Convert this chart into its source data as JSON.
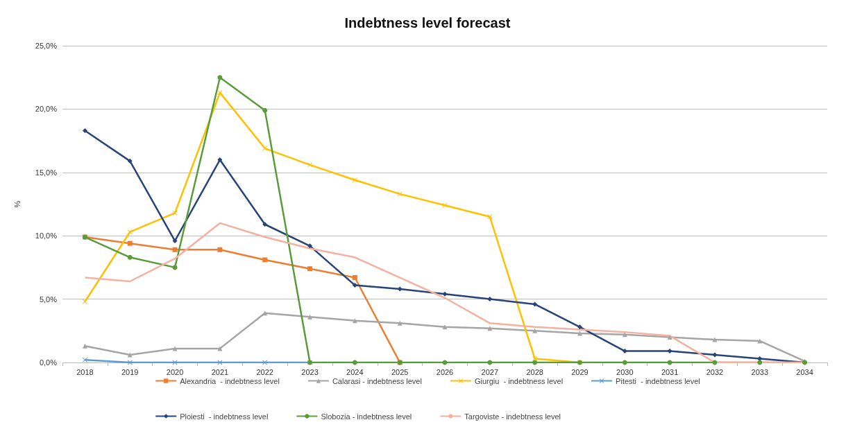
{
  "chart_data": {
    "type": "line",
    "title": "Indebtness level forecast",
    "ylabel": "%",
    "categories": [
      "2018",
      "2019",
      "2020",
      "2021",
      "2022",
      "2023",
      "2024",
      "2025",
      "2026",
      "2027",
      "2028",
      "2029",
      "2030",
      "2031",
      "2032",
      "2033",
      "2034"
    ],
    "ylim": [
      0,
      25
    ],
    "yticks": [
      {
        "value": 0,
        "label": "0,0%"
      },
      {
        "value": 5,
        "label": "5,0%"
      },
      {
        "value": 10,
        "label": "10,0%"
      },
      {
        "value": 15,
        "label": "15,0%"
      },
      {
        "value": 20,
        "label": "20,0%"
      },
      {
        "value": 25,
        "label": "25,0%"
      }
    ],
    "grid": "y",
    "legend": "bottom",
    "series": [
      {
        "name": "Alexandria  - indebtness level",
        "color": "#ed7d31",
        "marker": "square",
        "values": [
          9.9,
          9.4,
          8.9,
          8.9,
          8.1,
          7.4,
          6.7,
          0,
          null,
          null,
          null,
          null,
          null,
          null,
          null,
          null,
          null
        ]
      },
      {
        "name": "Calarasi - indebtness level",
        "color": "#a5a5a5",
        "marker": "triangle",
        "values": [
          1.3,
          0.6,
          1.1,
          1.1,
          3.9,
          3.6,
          3.3,
          3.1,
          2.8,
          2.7,
          2.5,
          2.3,
          2.2,
          2.0,
          1.8,
          1.7,
          0.1
        ]
      },
      {
        "name": "Giurgiu  - indebtness level",
        "color": "#ffc000",
        "marker": "cross",
        "values": [
          4.8,
          10.3,
          11.8,
          21.3,
          16.9,
          15.6,
          14.4,
          13.3,
          12.4,
          11.5,
          0.3,
          0,
          null,
          null,
          null,
          null,
          null
        ]
      },
      {
        "name": "Pitesti  - indebtness level",
        "color": "#5b9bd5",
        "marker": "cross",
        "values": [
          0.2,
          0,
          0,
          0,
          0,
          0,
          null,
          null,
          null,
          null,
          null,
          null,
          null,
          null,
          null,
          null,
          null
        ]
      },
      {
        "name": "Ploiesti  - indebtness level",
        "color": "#264478",
        "marker": "diamond",
        "values": [
          18.3,
          15.9,
          9.6,
          16.0,
          10.9,
          9.2,
          6.1,
          5.8,
          5.4,
          5.0,
          4.6,
          2.8,
          0.9,
          0.9,
          0.6,
          0.3,
          0.0
        ]
      },
      {
        "name": "Slobozia - indebtness level",
        "color": "#5a9b3a",
        "marker": "circle",
        "values": [
          9.9,
          8.3,
          7.5,
          22.5,
          19.9,
          0,
          0,
          0,
          0,
          0,
          0,
          0,
          0,
          0,
          0,
          0,
          0
        ]
      },
      {
        "name": "Targoviste - indebtness level",
        "color": "#f4b1a0",
        "marker": "none",
        "values": [
          6.7,
          6.4,
          8.2,
          11.0,
          9.9,
          9.0,
          8.3,
          6.7,
          5.1,
          3.1,
          2.8,
          2.6,
          2.4,
          2.1,
          0,
          0,
          0
        ]
      }
    ]
  }
}
